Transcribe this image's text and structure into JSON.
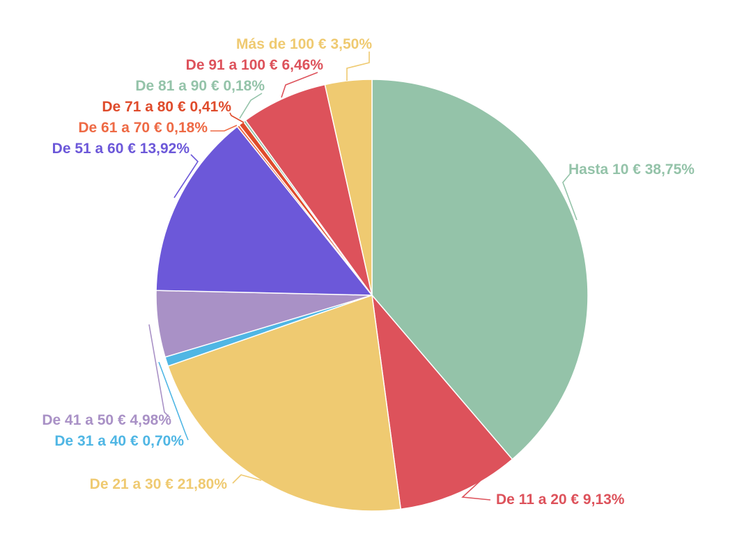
{
  "chart_data": {
    "type": "pie",
    "title": "",
    "start_angle_deg": 0,
    "direction": "clockwise",
    "slices": [
      {
        "label": "Hasta 10 €",
        "value": 38.75,
        "value_text": "38,75%",
        "color": "#94c3a9"
      },
      {
        "label": "De 11 a 20 €",
        "value": 9.13,
        "value_text": "9,13%",
        "color": "#dd525b"
      },
      {
        "label": "De 21 a 30 €",
        "value": 21.8,
        "value_text": "21,80%",
        "color": "#efca71"
      },
      {
        "label": "De 31 a 40 €",
        "value": 0.7,
        "value_text": "0,70%",
        "color": "#4fb6e4"
      },
      {
        "label": "De 41 a 50 €",
        "value": 4.98,
        "value_text": "4,98%",
        "color": "#a991c6"
      },
      {
        "label": "De 51 a 60 €",
        "value": 13.92,
        "value_text": "13,92%",
        "color": "#6c58d9"
      },
      {
        "label": "De 61 a 70 €",
        "value": 0.18,
        "value_text": "0,18%",
        "color": "#ee6a45"
      },
      {
        "label": "De 71 a 80 €",
        "value": 0.41,
        "value_text": "0,41%",
        "color": "#df4b2b"
      },
      {
        "label": "De 81 a 90 €",
        "value": 0.18,
        "value_text": "0,18%",
        "color": "#94c3a9"
      },
      {
        "label": "De 91 a 100 €",
        "value": 6.46,
        "value_text": "6,46%",
        "color": "#dd525b"
      },
      {
        "label": "Más de 100 €",
        "value": 3.5,
        "value_text": "3,50%",
        "color": "#efca71"
      }
    ]
  }
}
